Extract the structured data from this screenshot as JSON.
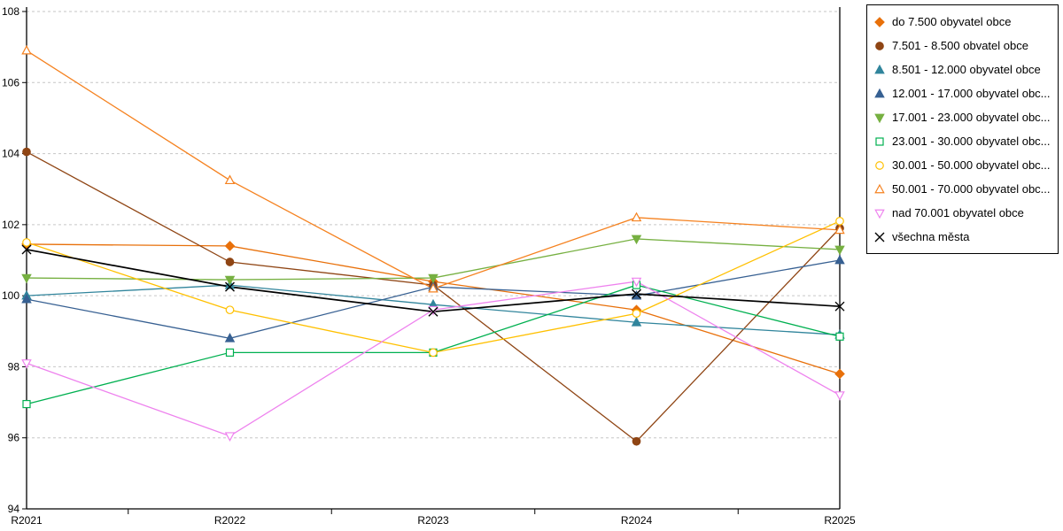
{
  "chart_data": {
    "type": "line",
    "title": "",
    "xlabel": "",
    "ylabel": "",
    "categories": [
      "R2021",
      "R2022",
      "R2023",
      "R2024",
      "R2025"
    ],
    "ylim": [
      94,
      108
    ],
    "yticks": [
      94,
      96,
      98,
      100,
      102,
      104,
      106,
      108
    ],
    "grid": "horizontal-dashed",
    "legend_position": "top-right",
    "series": [
      {
        "name": "do 7.500 obyvatel obce",
        "marker": "diamond",
        "style": "filled",
        "color": "#e8700a",
        "values": [
          101.45,
          101.4,
          100.4,
          99.6,
          97.8
        ]
      },
      {
        "name": "7.501 - 8.500 obvatel obce",
        "marker": "circle",
        "style": "filled",
        "color": "#8f4514",
        "values": [
          104.05,
          100.95,
          100.3,
          95.9,
          101.9
        ]
      },
      {
        "name": "8.501 - 12.000 obyvatel obce",
        "marker": "triangle-up",
        "style": "filled",
        "color": "#31859c",
        "values": [
          100.0,
          100.3,
          99.75,
          99.25,
          98.9
        ]
      },
      {
        "name": "12.001 - 17.000 obyvatel obc...",
        "marker": "triangle-up",
        "style": "filled",
        "color": "#376092",
        "values": [
          99.9,
          98.8,
          100.25,
          100.0,
          101.0
        ]
      },
      {
        "name": "17.001 - 23.000 obyvatel obc...",
        "marker": "triangle-down",
        "style": "filled",
        "color": "#76b041",
        "values": [
          100.5,
          100.45,
          100.5,
          101.6,
          101.3
        ]
      },
      {
        "name": "23.001 - 30.000 obyvatel obc...",
        "marker": "square",
        "style": "open",
        "color": "#00b050",
        "values": [
          96.95,
          98.4,
          98.4,
          100.3,
          98.85
        ]
      },
      {
        "name": "30.001 - 50.000 obyvatel obc...",
        "marker": "circle",
        "style": "open",
        "color": "#ffc000",
        "values": [
          101.5,
          99.6,
          98.4,
          99.5,
          102.1
        ]
      },
      {
        "name": "50.001 - 70.000 obyvatel obc...",
        "marker": "triangle-up",
        "style": "open",
        "color": "#f58220",
        "values": [
          106.9,
          103.25,
          100.2,
          102.2,
          101.85
        ]
      },
      {
        "name": "nad 70.001 obyvatel obce",
        "marker": "triangle-down",
        "style": "open",
        "color": "#ee82ee",
        "values": [
          98.1,
          96.05,
          99.6,
          100.4,
          97.2
        ]
      },
      {
        "name": "všechna města",
        "marker": "x",
        "style": "line",
        "color": "#000000",
        "values": [
          101.3,
          100.25,
          99.55,
          100.05,
          99.7
        ]
      }
    ],
    "axis_color": "#000000",
    "gridline_color": "#c6c6c6"
  }
}
